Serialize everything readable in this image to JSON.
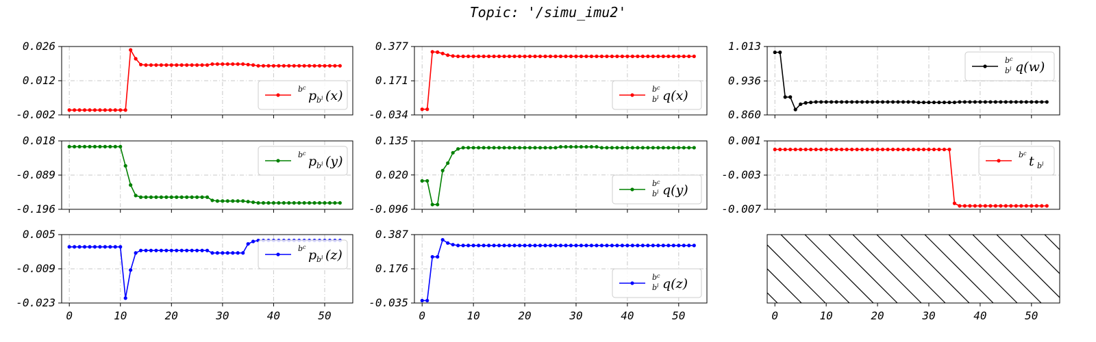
{
  "title": "Topic: '/simu_imu2'",
  "chart_data": [
    {
      "id": "p_x",
      "type": "line",
      "color": "#ff0000",
      "legend": {
        "sup": "b",
        "supsub": "c",
        "base": "p",
        "sub": "b",
        "subsup": "i",
        "arg": "(x)",
        "corner": "bottom-right",
        "pos": "bottom-right"
      },
      "ylim": [
        -0.002,
        0.026
      ],
      "yticks": [
        "-0.002",
        "0.012",
        "0.026"
      ],
      "xticks": [
        "0",
        "10",
        "20",
        "30",
        "40",
        "50"
      ],
      "xlim": [
        -1.5,
        55.5
      ],
      "x_start": 0,
      "values": [
        0.0,
        0.0,
        0.0,
        0.0,
        0.0,
        0.0,
        0.0,
        0.0,
        0.0,
        0.0,
        0.0,
        0.0,
        0.0246,
        0.021,
        0.0186,
        0.0184,
        0.0184,
        0.0184,
        0.0184,
        0.0184,
        0.0184,
        0.0184,
        0.0184,
        0.0184,
        0.0184,
        0.0184,
        0.0184,
        0.0184,
        0.0188,
        0.0188,
        0.0188,
        0.0188,
        0.0188,
        0.0188,
        0.0188,
        0.0186,
        0.0184,
        0.0181,
        0.0181,
        0.0181,
        0.0181,
        0.0181,
        0.0181,
        0.0181,
        0.0181,
        0.0181,
        0.0181,
        0.0181,
        0.0181,
        0.0181,
        0.0181,
        0.0181,
        0.0181,
        0.0181
      ]
    },
    {
      "id": "q_x",
      "type": "line",
      "color": "#ff0000",
      "legend": {
        "sup": "b",
        "supsub": "c",
        "base": "q",
        "sub": "b",
        "subsup": "i",
        "arg": "(x)",
        "pos": "bottom-right"
      },
      "ylim": [
        -0.034,
        0.377
      ],
      "yticks": [
        "-0.034",
        "0.171",
        "0.377"
      ],
      "xticks": [
        "0",
        "10",
        "20",
        "30",
        "40",
        "50"
      ],
      "xlim": [
        -1.5,
        55.5
      ],
      "x_start": 0,
      "values": [
        -0.0,
        -0.0,
        0.345,
        0.343,
        0.335,
        0.325,
        0.32,
        0.318,
        0.318,
        0.318,
        0.318,
        0.318,
        0.318,
        0.318,
        0.318,
        0.318,
        0.318,
        0.318,
        0.318,
        0.318,
        0.318,
        0.318,
        0.318,
        0.318,
        0.318,
        0.318,
        0.318,
        0.318,
        0.318,
        0.318,
        0.318,
        0.318,
        0.318,
        0.318,
        0.318,
        0.318,
        0.318,
        0.318,
        0.318,
        0.318,
        0.318,
        0.318,
        0.318,
        0.318,
        0.318,
        0.318,
        0.318,
        0.318,
        0.318,
        0.318,
        0.318,
        0.318,
        0.318,
        0.318
      ]
    },
    {
      "id": "q_w",
      "type": "line",
      "color": "#000000",
      "legend": {
        "sup": "b",
        "supsub": "c",
        "base": "q",
        "sub": "b",
        "subsup": "i",
        "arg": "(w)",
        "pos": "top-right"
      },
      "ylim": [
        0.86,
        1.013
      ],
      "yticks": [
        "0.860",
        "0.936",
        "1.013"
      ],
      "xticks": [
        "0",
        "10",
        "20",
        "30",
        "40",
        "50"
      ],
      "xlim": [
        -1.5,
        55.5
      ],
      "x_start": 0,
      "values": [
        1.0,
        1.0,
        0.9,
        0.9,
        0.872,
        0.884,
        0.887,
        0.888,
        0.889,
        0.889,
        0.889,
        0.889,
        0.889,
        0.889,
        0.889,
        0.889,
        0.889,
        0.889,
        0.889,
        0.889,
        0.889,
        0.889,
        0.889,
        0.889,
        0.889,
        0.889,
        0.889,
        0.889,
        0.888,
        0.888,
        0.888,
        0.888,
        0.888,
        0.888,
        0.888,
        0.888,
        0.889,
        0.889,
        0.889,
        0.889,
        0.889,
        0.889,
        0.889,
        0.889,
        0.889,
        0.889,
        0.889,
        0.889,
        0.889,
        0.889,
        0.889,
        0.889,
        0.889,
        0.889
      ]
    },
    {
      "id": "p_y",
      "type": "line",
      "color": "#008000",
      "legend": {
        "sup": "b",
        "supsub": "c",
        "base": "p",
        "sub": "b",
        "subsup": "i",
        "arg": "(y)",
        "pos": "top-right"
      },
      "ylim": [
        -0.196,
        0.018
      ],
      "yticks": [
        "-0.196",
        "-0.089",
        "0.018"
      ],
      "xticks": [
        "0",
        "10",
        "20",
        "30",
        "40",
        "50"
      ],
      "xlim": [
        -1.5,
        55.5
      ],
      "x_start": 0,
      "values": [
        0.0,
        0.0,
        0.0,
        0.0,
        0.0,
        0.0,
        0.0,
        0.0,
        0.0,
        0.0,
        0.0,
        -0.06,
        -0.12,
        -0.153,
        -0.158,
        -0.158,
        -0.158,
        -0.158,
        -0.158,
        -0.158,
        -0.158,
        -0.158,
        -0.158,
        -0.158,
        -0.158,
        -0.158,
        -0.158,
        -0.158,
        -0.168,
        -0.17,
        -0.17,
        -0.17,
        -0.17,
        -0.17,
        -0.17,
        -0.172,
        -0.174,
        -0.176,
        -0.176,
        -0.176,
        -0.176,
        -0.176,
        -0.176,
        -0.176,
        -0.176,
        -0.176,
        -0.176,
        -0.176,
        -0.176,
        -0.176,
        -0.176,
        -0.176,
        -0.176,
        -0.176
      ]
    },
    {
      "id": "q_y",
      "type": "line",
      "color": "#008000",
      "legend": {
        "sup": "b",
        "supsub": "c",
        "base": "q",
        "sub": "b",
        "subsup": "i",
        "arg": "(y)",
        "pos": "bottom-right"
      },
      "ylim": [
        -0.096,
        0.135
      ],
      "yticks": [
        "-0.096",
        "0.020",
        "0.135"
      ],
      "xticks": [
        "0",
        "10",
        "20",
        "30",
        "40",
        "50"
      ],
      "xlim": [
        -1.5,
        55.5
      ],
      "x_start": 0,
      "values": [
        0.0,
        0.0,
        -0.08,
        -0.08,
        0.035,
        0.06,
        0.095,
        0.108,
        0.112,
        0.112,
        0.112,
        0.112,
        0.112,
        0.112,
        0.112,
        0.112,
        0.112,
        0.112,
        0.112,
        0.112,
        0.112,
        0.112,
        0.112,
        0.112,
        0.112,
        0.112,
        0.112,
        0.115,
        0.115,
        0.115,
        0.115,
        0.115,
        0.115,
        0.115,
        0.115,
        0.112,
        0.112,
        0.112,
        0.112,
        0.112,
        0.112,
        0.112,
        0.112,
        0.112,
        0.112,
        0.112,
        0.112,
        0.112,
        0.112,
        0.112,
        0.112,
        0.112,
        0.112,
        0.112
      ]
    },
    {
      "id": "t_b",
      "type": "line",
      "color": "#ff0000",
      "legend": {
        "sup": "b",
        "supsub": "c",
        "base": "t",
        "sub": "b",
        "subsup": "i",
        "arg": "",
        "pos": "top-right"
      },
      "ylim": [
        -0.007,
        0.001
      ],
      "yticks": [
        "-0.007",
        "-0.003",
        "0.001"
      ],
      "xticks": [
        "0",
        "10",
        "20",
        "30",
        "40",
        "50"
      ],
      "xlim": [
        -1.5,
        55.5
      ],
      "x_start": 0,
      "values": [
        0.0,
        0.0,
        0.0,
        0.0,
        0.0,
        0.0,
        0.0,
        0.0,
        0.0,
        0.0,
        0.0,
        0.0,
        0.0,
        0.0,
        0.0,
        0.0,
        0.0,
        0.0,
        0.0,
        0.0,
        0.0,
        0.0,
        0.0,
        0.0,
        0.0,
        0.0,
        0.0,
        0.0,
        0.0,
        0.0,
        0.0,
        0.0,
        0.0,
        0.0,
        0.0,
        -0.0063,
        -0.0066,
        -0.0066,
        -0.0066,
        -0.0066,
        -0.0066,
        -0.0066,
        -0.0066,
        -0.0066,
        -0.0066,
        -0.0066,
        -0.0066,
        -0.0066,
        -0.0066,
        -0.0066,
        -0.0066,
        -0.0066,
        -0.0066,
        -0.0066
      ]
    },
    {
      "id": "p_z",
      "type": "line",
      "color": "#0000ff",
      "legend": {
        "sup": "b",
        "supsub": "c",
        "base": "p",
        "sub": "b",
        "subsup": "i",
        "arg": "(z)",
        "pos": "top-right"
      },
      "ylim": [
        -0.023,
        0.005
      ],
      "yticks": [
        "-0.023",
        "-0.009",
        "0.005"
      ],
      "xticks": [
        "0",
        "10",
        "20",
        "30",
        "40",
        "50"
      ],
      "xlim": [
        -1.5,
        55.5
      ],
      "x_start": 0,
      "values": [
        0.0,
        0.0,
        0.0,
        0.0,
        0.0,
        0.0,
        0.0,
        0.0,
        0.0,
        0.0,
        0.0,
        -0.021,
        -0.0095,
        -0.0025,
        -0.0015,
        -0.0015,
        -0.0015,
        -0.0015,
        -0.0015,
        -0.0015,
        -0.0015,
        -0.0015,
        -0.0015,
        -0.0015,
        -0.0015,
        -0.0015,
        -0.0015,
        -0.0015,
        -0.0025,
        -0.0025,
        -0.0025,
        -0.0025,
        -0.0025,
        -0.0025,
        -0.0025,
        0.0012,
        0.0022,
        0.0026,
        0.0026,
        0.0026,
        0.0026,
        0.0026,
        0.0026,
        0.0026,
        0.0026,
        0.0026,
        0.0026,
        0.0026,
        0.0026,
        0.0026,
        0.0026,
        0.0026,
        0.0026,
        0.0026
      ]
    },
    {
      "id": "q_z",
      "type": "line",
      "color": "#0000ff",
      "legend": {
        "sup": "b",
        "supsub": "c",
        "base": "q",
        "sub": "b",
        "subsup": "i",
        "arg": "(z)",
        "pos": "bottom-right"
      },
      "ylim": [
        -0.035,
        0.387
      ],
      "yticks": [
        "-0.035",
        "0.176",
        "0.387"
      ],
      "xticks": [
        "0",
        "10",
        "20",
        "30",
        "40",
        "50"
      ],
      "xlim": [
        -1.5,
        55.5
      ],
      "x_start": 0,
      "values": [
        -0.02,
        -0.02,
        0.25,
        0.25,
        0.355,
        0.335,
        0.325,
        0.32,
        0.32,
        0.32,
        0.32,
        0.32,
        0.32,
        0.32,
        0.32,
        0.32,
        0.32,
        0.32,
        0.32,
        0.32,
        0.32,
        0.32,
        0.32,
        0.32,
        0.32,
        0.32,
        0.32,
        0.32,
        0.32,
        0.32,
        0.32,
        0.32,
        0.32,
        0.32,
        0.32,
        0.32,
        0.32,
        0.32,
        0.32,
        0.32,
        0.32,
        0.32,
        0.32,
        0.32,
        0.32,
        0.32,
        0.32,
        0.32,
        0.32,
        0.32,
        0.32,
        0.32,
        0.32,
        0.32
      ]
    },
    {
      "id": "empty",
      "type": "empty",
      "xticks": [
        "0",
        "10",
        "20",
        "30",
        "40",
        "50"
      ],
      "xlim": [
        -1.5,
        55.5
      ]
    }
  ]
}
